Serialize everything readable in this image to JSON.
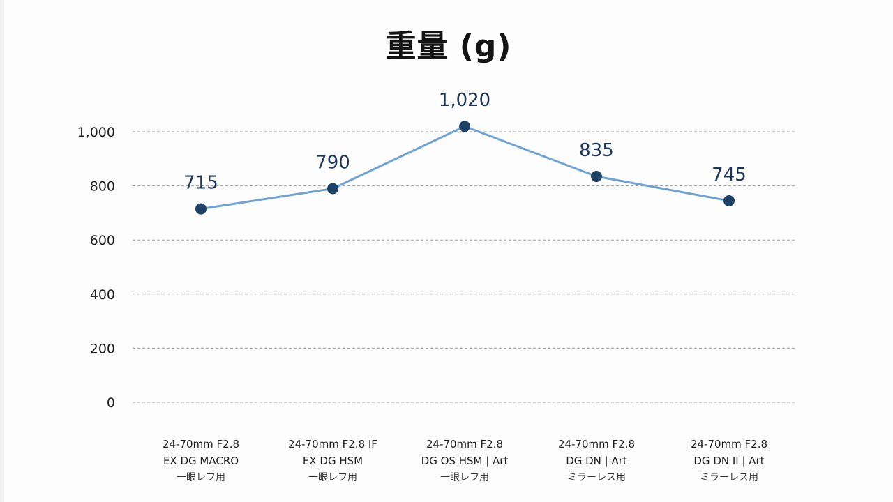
{
  "chart_data": {
    "type": "line",
    "title": "重量 (g)",
    "categories": [
      {
        "line1": "24-70mm F2.8",
        "line2": "EX DG MACRO",
        "line3": "一眼レフ用"
      },
      {
        "line1": "24-70mm F2.8 IF",
        "line2": "EX DG HSM",
        "line3": "一眼レフ用"
      },
      {
        "line1": "24-70mm F2.8",
        "line2": "DG OS HSM | Art",
        "line3": "一眼レフ用"
      },
      {
        "line1": "24-70mm F2.8",
        "line2": "DG DN | Art",
        "line3": "ミラーレス用"
      },
      {
        "line1": "24-70mm F2.8",
        "line2": "DG DN II | Art",
        "line3": "ミラーレス用"
      }
    ],
    "values": [
      715,
      790,
      1020,
      835,
      745
    ],
    "data_labels": [
      "715",
      "790",
      "1,020",
      "835",
      "745"
    ],
    "yticks": [
      0,
      200,
      400,
      600,
      800,
      1000
    ],
    "ytick_labels": [
      "0",
      "200",
      "400",
      "600",
      "800",
      "1,000"
    ],
    "ylim": [
      0,
      1000
    ],
    "grid": true,
    "line_color": "#6fa3d3",
    "marker_color": "#1e4266",
    "label_color": "#1a3559"
  }
}
